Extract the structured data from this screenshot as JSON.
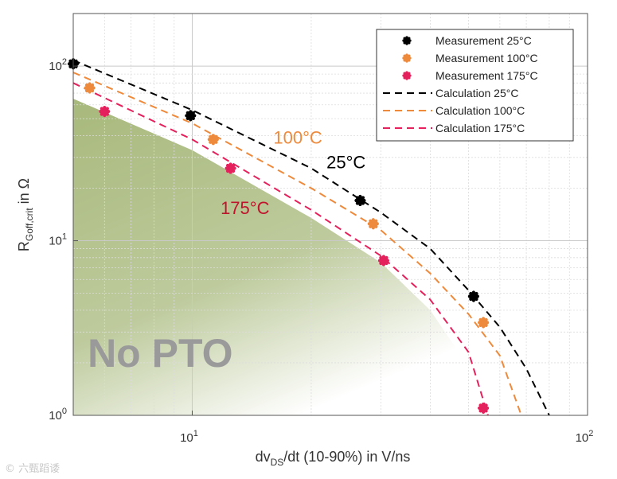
{
  "chart_data": {
    "type": "scatter",
    "xlabel_parts": {
      "pre": "dv",
      "sub": "DS",
      "post": "/dt (10-90%) in V/ns"
    },
    "ylabel_parts": {
      "pre": "R",
      "sub": "Goff,crit",
      "post": " in Ω"
    },
    "x_scale": "log",
    "y_scale": "log",
    "xlim": [
      5,
      100
    ],
    "ylim": [
      1,
      200
    ],
    "x_ticks": [
      {
        "value": 10,
        "base": "10",
        "exp": "1"
      },
      {
        "value": 100,
        "base": "10",
        "exp": "2"
      }
    ],
    "y_ticks": [
      {
        "value": 1,
        "base": "10",
        "exp": "0"
      },
      {
        "value": 10,
        "base": "10",
        "exp": "1"
      },
      {
        "value": 100,
        "base": "10",
        "exp": "2"
      }
    ],
    "grid": true,
    "legend_position": "top-right",
    "series": [
      {
        "name": "Measurement 25°C",
        "kind": "points",
        "color": "#000000",
        "points": [
          [
            5.0,
            103
          ],
          [
            9.9,
            52
          ],
          [
            26.6,
            17
          ],
          [
            51.5,
            4.8
          ]
        ]
      },
      {
        "name": "Measurement 100°C",
        "kind": "points",
        "color": "#ee8a3c",
        "points": [
          [
            5.5,
            75
          ],
          [
            11.3,
            38
          ],
          [
            28.7,
            12.5
          ],
          [
            54.5,
            3.4
          ]
        ]
      },
      {
        "name": "Measurement 175°C",
        "kind": "points",
        "color": "#e4215c",
        "points": [
          [
            6.0,
            55
          ],
          [
            12.5,
            26
          ],
          [
            30.5,
            7.7
          ],
          [
            54.5,
            1.1
          ]
        ]
      },
      {
        "name": "Calculation 25°C",
        "kind": "line",
        "color": "#000000",
        "points": [
          [
            5.0,
            108
          ],
          [
            10,
            56
          ],
          [
            20,
            26
          ],
          [
            30,
            14.5
          ],
          [
            40,
            9.0
          ],
          [
            50,
            5.2
          ],
          [
            60,
            3.2
          ],
          [
            70,
            1.85
          ],
          [
            80,
            1.0
          ]
        ]
      },
      {
        "name": "Calculation 100°C",
        "kind": "line",
        "color": "#ee8a3c",
        "points": [
          [
            5.0,
            92
          ],
          [
            10,
            47
          ],
          [
            20,
            20
          ],
          [
            30,
            11.5
          ],
          [
            40,
            6.5
          ],
          [
            50,
            3.8
          ],
          [
            60,
            2.2
          ],
          [
            68,
            1.0
          ]
        ]
      },
      {
        "name": "Calculation 175°C",
        "kind": "line",
        "color": "#e4215c",
        "points": [
          [
            5.0,
            80
          ],
          [
            10,
            38
          ],
          [
            20,
            15
          ],
          [
            30,
            8.2
          ],
          [
            40,
            4.6
          ],
          [
            50,
            2.3
          ],
          [
            56,
            1.0
          ]
        ]
      }
    ],
    "region": {
      "label": "No PTO",
      "color": "#a8b97c",
      "boundary": [
        [
          5.0,
          65
        ],
        [
          10,
          33
        ],
        [
          20,
          13.5
        ],
        [
          30,
          7.5
        ],
        [
          40,
          4.0
        ],
        [
          50,
          1.9
        ],
        [
          55,
          1.0
        ]
      ]
    },
    "annotations": [
      {
        "text": "100°C",
        "color": "#ee8a3c",
        "x": 18.5,
        "y": 36
      },
      {
        "text": "25°C",
        "color": "#000000",
        "x": 24.5,
        "y": 26
      },
      {
        "text": "175°C",
        "color": "#c0142d",
        "x": 13.6,
        "y": 14.2
      }
    ]
  },
  "watermark": "© 六甄蹈诿"
}
